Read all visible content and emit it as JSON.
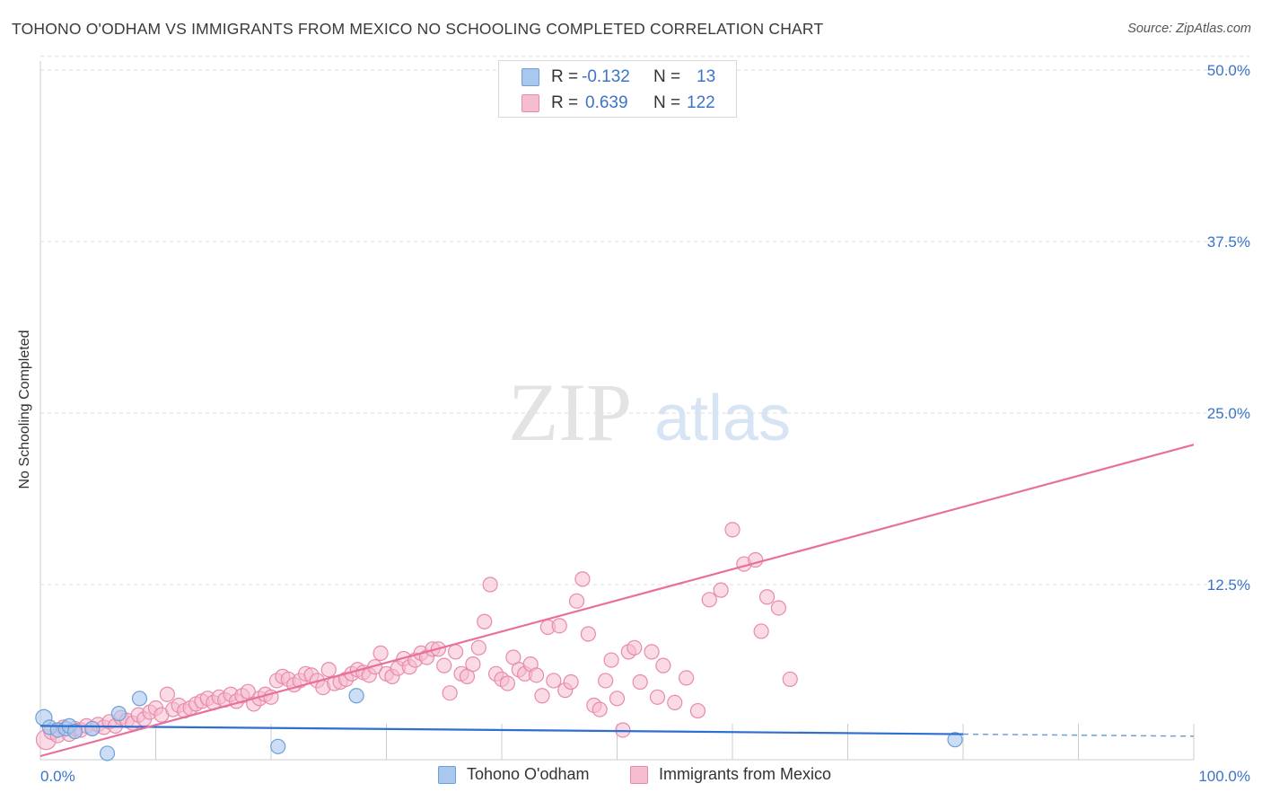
{
  "title": "TOHONO O'ODHAM VS IMMIGRANTS FROM MEXICO NO SCHOOLING COMPLETED CORRELATION CHART",
  "source": "Source: ZipAtlas.com",
  "watermark": {
    "zip": "ZIP",
    "atlas": "atlas"
  },
  "legend_top": {
    "r_label": "R =",
    "n_label": "N =",
    "rows": [
      {
        "r": "-0.132",
        "n": "13"
      },
      {
        "r": "0.639",
        "n": "122"
      }
    ]
  },
  "colors": {
    "blue_fill": "#aac8ee",
    "blue_stroke": "#6f9fd8",
    "blue_line": "#2f6fcf",
    "pink_fill": "#f6bcd0",
    "pink_stroke": "#e88aab",
    "pink_line": "#e8709a",
    "tick_text": "#3a74c9",
    "grid": "#dddddd"
  },
  "chart_data": {
    "type": "scatter",
    "title": "TOHONO O'ODHAM VS IMMIGRANTS FROM MEXICO NO SCHOOLING COMPLETED CORRELATION CHART",
    "xlabel": "",
    "ylabel": "No Schooling Completed",
    "xlim": [
      0,
      100
    ],
    "ylim": [
      0,
      52
    ],
    "x_tick_labels": [
      "0.0%",
      "100.0%"
    ],
    "y_ticks": [
      12.5,
      25.0,
      37.5,
      50.0
    ],
    "y_tick_labels": [
      "12.5%",
      "25.0%",
      "37.5%",
      "50.0%"
    ],
    "grid": true,
    "legend": "bottom-center",
    "series": [
      {
        "name": "Tohono O'odham",
        "r": -0.132,
        "n": 13,
        "trend": {
          "x0": 0,
          "y0": 2.2,
          "x1": 80,
          "y1": 1.6,
          "dashed_to": 100
        },
        "points": [
          {
            "x": 0.3,
            "y": 2.8,
            "s": 2
          },
          {
            "x": 0.8,
            "y": 2.1,
            "s": 1
          },
          {
            "x": 1.5,
            "y": 1.9,
            "s": 1
          },
          {
            "x": 2.2,
            "y": 2.0,
            "s": 1
          },
          {
            "x": 2.5,
            "y": 2.2,
            "s": 1
          },
          {
            "x": 3.0,
            "y": 1.8,
            "s": 1
          },
          {
            "x": 4.5,
            "y": 2.0,
            "s": 1
          },
          {
            "x": 5.8,
            "y": 0.2,
            "s": 1
          },
          {
            "x": 6.8,
            "y": 3.1,
            "s": 1
          },
          {
            "x": 8.6,
            "y": 4.2,
            "s": 1
          },
          {
            "x": 20.6,
            "y": 0.7,
            "s": 1
          },
          {
            "x": 27.4,
            "y": 4.4,
            "s": 1
          },
          {
            "x": 79.3,
            "y": 1.2,
            "s": 1
          }
        ]
      },
      {
        "name": "Immigrants from Mexico",
        "r": 0.639,
        "n": 122,
        "trend": {
          "x0": 0,
          "y0": 0,
          "x1": 100,
          "y1": 22.7
        },
        "points": [
          {
            "x": 0.5,
            "y": 1.2,
            "s": 3
          },
          {
            "x": 1.0,
            "y": 1.8,
            "s": 2
          },
          {
            "x": 1.5,
            "y": 1.5,
            "s": 1
          },
          {
            "x": 2.0,
            "y": 2.1,
            "s": 1
          },
          {
            "x": 2.5,
            "y": 1.6,
            "s": 1
          },
          {
            "x": 3.0,
            "y": 2.0,
            "s": 1
          },
          {
            "x": 3.5,
            "y": 1.9,
            "s": 1
          },
          {
            "x": 4.0,
            "y": 2.2,
            "s": 1
          },
          {
            "x": 4.5,
            "y": 2.0,
            "s": 1
          },
          {
            "x": 5.0,
            "y": 2.3,
            "s": 1
          },
          {
            "x": 5.5,
            "y": 2.1,
            "s": 1
          },
          {
            "x": 6.0,
            "y": 2.5,
            "s": 1
          },
          {
            "x": 6.5,
            "y": 2.2,
            "s": 1
          },
          {
            "x": 7.0,
            "y": 2.8,
            "s": 1
          },
          {
            "x": 7.5,
            "y": 2.6,
            "s": 1
          },
          {
            "x": 8.0,
            "y": 2.4,
            "s": 1
          },
          {
            "x": 8.5,
            "y": 3.0,
            "s": 1
          },
          {
            "x": 9.0,
            "y": 2.7,
            "s": 1
          },
          {
            "x": 9.5,
            "y": 3.2,
            "s": 1
          },
          {
            "x": 10.0,
            "y": 3.5,
            "s": 1
          },
          {
            "x": 10.5,
            "y": 3.0,
            "s": 1
          },
          {
            "x": 11.0,
            "y": 4.5,
            "s": 1
          },
          {
            "x": 11.5,
            "y": 3.4,
            "s": 1
          },
          {
            "x": 12.0,
            "y": 3.7,
            "s": 1
          },
          {
            "x": 12.5,
            "y": 3.3,
            "s": 1
          },
          {
            "x": 13.0,
            "y": 3.5,
            "s": 1
          },
          {
            "x": 13.5,
            "y": 3.8,
            "s": 1
          },
          {
            "x": 14.0,
            "y": 4.0,
            "s": 1
          },
          {
            "x": 14.5,
            "y": 4.2,
            "s": 1
          },
          {
            "x": 15.0,
            "y": 3.9,
            "s": 1
          },
          {
            "x": 15.5,
            "y": 4.3,
            "s": 1
          },
          {
            "x": 16.0,
            "y": 4.1,
            "s": 1
          },
          {
            "x": 16.5,
            "y": 4.5,
            "s": 1
          },
          {
            "x": 17.0,
            "y": 4.0,
            "s": 1
          },
          {
            "x": 17.5,
            "y": 4.4,
            "s": 1
          },
          {
            "x": 18.0,
            "y": 4.7,
            "s": 1
          },
          {
            "x": 18.5,
            "y": 3.8,
            "s": 1
          },
          {
            "x": 19.0,
            "y": 4.2,
            "s": 1
          },
          {
            "x": 19.5,
            "y": 4.5,
            "s": 1
          },
          {
            "x": 20.0,
            "y": 4.3,
            "s": 1
          },
          {
            "x": 20.5,
            "y": 5.5,
            "s": 1
          },
          {
            "x": 21.0,
            "y": 5.8,
            "s": 1
          },
          {
            "x": 21.5,
            "y": 5.6,
            "s": 1
          },
          {
            "x": 22.0,
            "y": 5.2,
            "s": 1
          },
          {
            "x": 22.5,
            "y": 5.5,
            "s": 1
          },
          {
            "x": 23.0,
            "y": 6.0,
            "s": 1
          },
          {
            "x": 23.5,
            "y": 5.9,
            "s": 1
          },
          {
            "x": 24.0,
            "y": 5.5,
            "s": 1
          },
          {
            "x": 24.5,
            "y": 5.0,
            "s": 1
          },
          {
            "x": 25.0,
            "y": 6.3,
            "s": 1
          },
          {
            "x": 25.5,
            "y": 5.3,
            "s": 1
          },
          {
            "x": 26.0,
            "y": 5.4,
            "s": 1
          },
          {
            "x": 26.5,
            "y": 5.6,
            "s": 1
          },
          {
            "x": 27.0,
            "y": 6.0,
            "s": 1
          },
          {
            "x": 27.5,
            "y": 6.3,
            "s": 1
          },
          {
            "x": 28.0,
            "y": 6.1,
            "s": 1
          },
          {
            "x": 28.5,
            "y": 5.9,
            "s": 1
          },
          {
            "x": 29.0,
            "y": 6.5,
            "s": 1
          },
          {
            "x": 29.5,
            "y": 7.5,
            "s": 1
          },
          {
            "x": 30.0,
            "y": 6.0,
            "s": 1
          },
          {
            "x": 30.5,
            "y": 5.8,
            "s": 1
          },
          {
            "x": 31.0,
            "y": 6.4,
            "s": 1
          },
          {
            "x": 31.5,
            "y": 7.1,
            "s": 1
          },
          {
            "x": 32.0,
            "y": 6.5,
            "s": 1
          },
          {
            "x": 32.5,
            "y": 7.0,
            "s": 1
          },
          {
            "x": 33.0,
            "y": 7.5,
            "s": 1
          },
          {
            "x": 33.5,
            "y": 7.2,
            "s": 1
          },
          {
            "x": 34.0,
            "y": 7.8,
            "s": 1
          },
          {
            "x": 34.5,
            "y": 7.8,
            "s": 1
          },
          {
            "x": 35.0,
            "y": 6.6,
            "s": 1
          },
          {
            "x": 35.5,
            "y": 4.6,
            "s": 1
          },
          {
            "x": 36.0,
            "y": 7.6,
            "s": 1
          },
          {
            "x": 36.5,
            "y": 6.0,
            "s": 1
          },
          {
            "x": 37.0,
            "y": 5.8,
            "s": 1
          },
          {
            "x": 37.5,
            "y": 6.7,
            "s": 1
          },
          {
            "x": 38.0,
            "y": 7.9,
            "s": 1
          },
          {
            "x": 38.5,
            "y": 9.8,
            "s": 1
          },
          {
            "x": 39.0,
            "y": 12.5,
            "s": 1
          },
          {
            "x": 39.5,
            "y": 6.0,
            "s": 1
          },
          {
            "x": 40.0,
            "y": 5.6,
            "s": 1
          },
          {
            "x": 40.5,
            "y": 5.3,
            "s": 1
          },
          {
            "x": 41.0,
            "y": 7.2,
            "s": 1
          },
          {
            "x": 41.5,
            "y": 6.3,
            "s": 1
          },
          {
            "x": 42.0,
            "y": 6.0,
            "s": 1
          },
          {
            "x": 42.5,
            "y": 6.7,
            "s": 1
          },
          {
            "x": 43.0,
            "y": 5.9,
            "s": 1
          },
          {
            "x": 43.5,
            "y": 4.4,
            "s": 1
          },
          {
            "x": 44.0,
            "y": 9.4,
            "s": 1
          },
          {
            "x": 44.5,
            "y": 5.5,
            "s": 1
          },
          {
            "x": 45.0,
            "y": 9.5,
            "s": 1
          },
          {
            "x": 45.5,
            "y": 4.8,
            "s": 1
          },
          {
            "x": 46.0,
            "y": 5.4,
            "s": 1
          },
          {
            "x": 46.5,
            "y": 11.3,
            "s": 1
          },
          {
            "x": 47.0,
            "y": 12.9,
            "s": 1
          },
          {
            "x": 47.5,
            "y": 8.9,
            "s": 1
          },
          {
            "x": 48.0,
            "y": 3.7,
            "s": 1
          },
          {
            "x": 48.5,
            "y": 3.4,
            "s": 1
          },
          {
            "x": 49.0,
            "y": 5.5,
            "s": 1
          },
          {
            "x": 49.5,
            "y": 7.0,
            "s": 1
          },
          {
            "x": 50.0,
            "y": 4.2,
            "s": 1
          },
          {
            "x": 50.5,
            "y": 1.9,
            "s": 1
          },
          {
            "x": 51.0,
            "y": 7.6,
            "s": 1
          },
          {
            "x": 51.5,
            "y": 7.9,
            "s": 1
          },
          {
            "x": 52.0,
            "y": 5.4,
            "s": 1
          },
          {
            "x": 53.0,
            "y": 7.6,
            "s": 1
          },
          {
            "x": 53.5,
            "y": 4.3,
            "s": 1
          },
          {
            "x": 54.0,
            "y": 6.6,
            "s": 1
          },
          {
            "x": 55.0,
            "y": 3.9,
            "s": 1
          },
          {
            "x": 56.0,
            "y": 5.7,
            "s": 1
          },
          {
            "x": 57.0,
            "y": 3.3,
            "s": 1
          },
          {
            "x": 58.0,
            "y": 11.4,
            "s": 1
          },
          {
            "x": 59.0,
            "y": 12.1,
            "s": 1
          },
          {
            "x": 60.0,
            "y": 16.5,
            "s": 1
          },
          {
            "x": 61.0,
            "y": 14.0,
            "s": 1
          },
          {
            "x": 62.0,
            "y": 14.3,
            "s": 1
          },
          {
            "x": 62.5,
            "y": 9.1,
            "s": 1
          },
          {
            "x": 63.0,
            "y": 11.6,
            "s": 1
          },
          {
            "x": 64.0,
            "y": 10.8,
            "s": 1
          },
          {
            "x": 65.0,
            "y": 5.6,
            "s": 1
          }
        ]
      }
    ]
  },
  "bottom_legend": {
    "items": [
      "Tohono O'odham",
      "Immigrants from Mexico"
    ]
  }
}
